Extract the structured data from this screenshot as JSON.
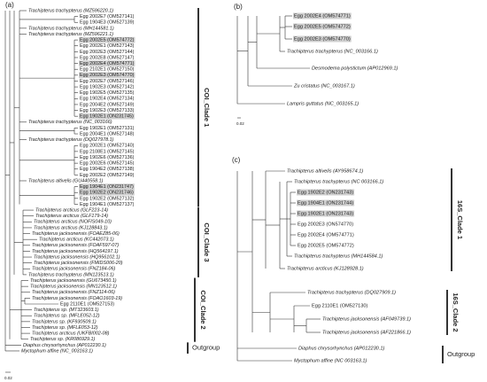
{
  "panels": [
    {
      "label": "(a)",
      "scale": "0.02",
      "clades": [
        "COI_Clade 1",
        "COI_Clade 3",
        "COI_Clade 2",
        "Outgroup"
      ],
      "taxa": [
        {
          "name": "Trachipterus trachypterus (MZ596220.1)"
        },
        {
          "name": "Egg 2002E7 (OM527141)"
        },
        {
          "name": "Egg 1904E3 (OM527139)"
        },
        {
          "name": "Trachipterus trachypterus (MH144581.1)"
        },
        {
          "name": "Trachipterus trachypterus (MZ596221.1)"
        },
        {
          "name": "Egg 2002E5 (OM574772)",
          "highlight": true
        },
        {
          "name": "Egg 2002E1 (OM527143)"
        },
        {
          "name": "Egg 2002E3 (OM527144)"
        },
        {
          "name": "Egg 2002E8 (OM527147)"
        },
        {
          "name": "Egg 2002E4 (OM574771)",
          "highlight": true
        },
        {
          "name": "Egg 2102E1 (OM527150)"
        },
        {
          "name": "Egg 2002E3 (OM574770)",
          "highlight": true
        },
        {
          "name": "Egg 2002E7 (OM527146)"
        },
        {
          "name": "Egg 1902E3 (OM527142)"
        },
        {
          "name": "Egg 1902E5 (OM527135)"
        },
        {
          "name": "Egg 1902E4 (OM527134)"
        },
        {
          "name": "Egg 2004E2 (OM527149)"
        },
        {
          "name": "Egg 1902E3 (OM527133)"
        },
        {
          "name": "Egg 1902E1 (ON231745)",
          "highlight": true
        },
        {
          "name": "Trachipterus trachypterus (NC_003166)"
        },
        {
          "name": "Egg 1902E1 (OM527131)"
        },
        {
          "name": "Egg 2004E1 (OM527148)"
        },
        {
          "name": "Trachipterus trachypterus (DQ027978.1)"
        },
        {
          "name": "Egg 2002E1 (OM527140)"
        },
        {
          "name": "Egg 2108E1 (OM527145)"
        },
        {
          "name": "Egg 1902E6 (OM527136)"
        },
        {
          "name": "Egg 2002E6 (OM527145)"
        },
        {
          "name": "Egg 1904E2 (OM527138)"
        },
        {
          "name": "Egg 2002E2 (OM527149)"
        },
        {
          "name": "Trachipterus altivelis (GU440558.1)"
        },
        {
          "name": "Egg 1904E1 (ON231747)",
          "highlight": true
        },
        {
          "name": "Egg 1902E2 (ON231746)",
          "highlight": true
        },
        {
          "name": "Egg 1902E2 (OM527132)"
        },
        {
          "name": "Egg 1904E1 (OM527137)"
        },
        {
          "name": "Trachipterus arcticus (GLF223-14)"
        },
        {
          "name": "Trachipterus arcticus (GLF179-14)"
        },
        {
          "name": "Trachipterus arcticus (NOFIS049-10)"
        },
        {
          "name": "Trachipterus arcticus (KJ128843.1)"
        },
        {
          "name": "Trachipterus jacksonensis (FOAEZ85-06)"
        },
        {
          "name": "Trachipterus arcticus (KC442073.1)"
        },
        {
          "name": "Trachipterus jacksonensis (FOAF597-07)"
        },
        {
          "name": "Trachipterus jacksonensis (HQ564197.1)"
        },
        {
          "name": "Trachipterus jacksonensis (HQ956102.1)"
        },
        {
          "name": "Trachipterus jacksonensis (FMIDS006-20)"
        },
        {
          "name": "Trachipterus jacksonensis (FNZ184-06)"
        },
        {
          "name": "Trachipterus trachypterus (MN123513.1)"
        },
        {
          "name": "Trachipterus jacksonensis (GU673450.1)"
        },
        {
          "name": "Trachipterus jacksonensis (MN123512.1)"
        },
        {
          "name": "Trachipterus jacksonensis (FNZ114-06)"
        },
        {
          "name": "Trachipterus jacksonensis (FOAO1603-19)"
        },
        {
          "name": "Egg 2110E1 (OM527153)"
        },
        {
          "name": "Trachipterus sp. (MT323603.1)"
        },
        {
          "name": "Trachipterus sp. (MFLE052-12)"
        },
        {
          "name": "Trachipterus sp. (KF930509.1)"
        },
        {
          "name": "Trachipterus sp. (MFLE053-12)"
        },
        {
          "name": "Trachipterus arcticus (UKFBI002-08)"
        },
        {
          "name": "Trachipterus sp. (KR086929.1)"
        },
        {
          "name": "Diaphus chrysorhynchus (AP012230.1)"
        },
        {
          "name": "Myctophum affine (NC_003163.1)"
        }
      ]
    },
    {
      "label": "(b)",
      "scale": "0.02",
      "clades": [],
      "taxa": [
        {
          "name": "Egg 2002E4 (OM574771)",
          "highlight": true
        },
        {
          "name": "Egg 2002E5 (OM574772)",
          "highlight": true
        },
        {
          "name": "Egg 2002E3 (OM574770)",
          "highlight": true
        },
        {
          "name": "Trachipterus trachypterus (NC_003166.1)"
        },
        {
          "name": "Desmodema polystictum (AP012969.1)"
        },
        {
          "name": "Zu cristatus (NC_003167.1)"
        },
        {
          "name": "Lampris guttatus (NC_003165.1)"
        }
      ]
    },
    {
      "label": "(c)",
      "clades": [
        "16S_Clade 1",
        "16S_Clade 2",
        "Outgroup"
      ],
      "taxa": [
        {
          "name": "Trachipterus altivelis (AY958674.1)"
        },
        {
          "name": "Trachipterus trachypterus (NC 003166.1)"
        },
        {
          "name": "Egg 1902E2 (ON231743)",
          "highlight": true
        },
        {
          "name": "Egg 1904E1 (ON231744)",
          "highlight": true
        },
        {
          "name": "Egg 1902E1 (ON231743)",
          "highlight": true
        },
        {
          "name": "Egg 2002E3 (ON574770)"
        },
        {
          "name": "Egg 2002E4 (OM574771)"
        },
        {
          "name": "Egg 2002E5 (OM574772)"
        },
        {
          "name": "Trachipterus trachypterus (MH144584.1)"
        },
        {
          "name": "Trachipterus arcticus (KJ128928.1)"
        },
        {
          "name": "Trachipterus trachypterus (DQ027909.1)"
        },
        {
          "name": "Egg 2110E1 (OM527130)"
        },
        {
          "name": "Trachipterus jacksonensis (AF049739.1)"
        },
        {
          "name": "Trachipterus jacksonensis (AF221866.1)"
        },
        {
          "name": "Diaphus chrysorhynchus (AP012230.1)"
        },
        {
          "name": "Myctophum affine (NC 003163.1)"
        }
      ]
    }
  ]
}
